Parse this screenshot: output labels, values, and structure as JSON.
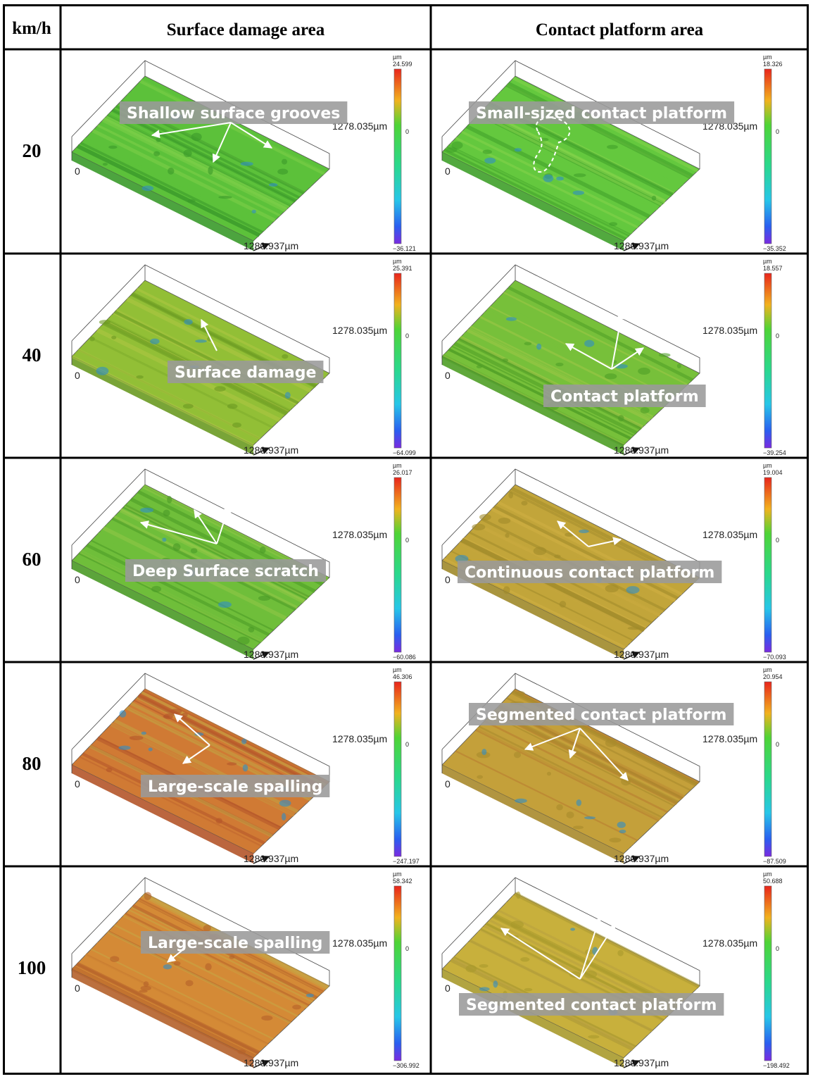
{
  "header": {
    "speed_col": "km/h",
    "col1": "Surface damage  area",
    "col2": "Contact platform  area"
  },
  "axes": {
    "x_max": "1280.937µm",
    "y_max": "1278.035µm",
    "origin": "0",
    "unit": "µm"
  },
  "rows": [
    {
      "speed": "20",
      "left": {
        "label": "Shallow surface grooves",
        "scale_max": "24.599",
        "scale_min": "−36.121",
        "palette": [
          "#3a9a2a",
          "#5cc13a",
          "#7fd04a"
        ]
      },
      "right": {
        "label": "Small-sized contact  platform",
        "scale_max": "18.326",
        "scale_min": "−35.352",
        "palette": [
          "#3fa02a",
          "#64c83e",
          "#86d44c"
        ]
      }
    },
    {
      "speed": "40",
      "left": {
        "label": "Surface damage",
        "scale_max": "25.391",
        "scale_min": "−64.099",
        "palette": [
          "#6a9a22",
          "#92bf36",
          "#b0c844"
        ]
      },
      "right": {
        "label": "Contact  platform",
        "scale_max": "18.557",
        "scale_min": "−39.254",
        "palette": [
          "#4f9e26",
          "#77c03a",
          "#a0c848"
        ]
      }
    },
    {
      "speed": "60",
      "left": {
        "label": "Deep Surface scratch",
        "scale_max": "26.017",
        "scale_min": "−60.086",
        "palette": [
          "#4a9a26",
          "#6fbe3a",
          "#92c848"
        ]
      },
      "right": {
        "label": "Continuous  contact platform",
        "scale_max": "19.004",
        "scale_min": "−70.093",
        "palette": [
          "#a08a2a",
          "#c2a53a",
          "#d2b044"
        ]
      }
    },
    {
      "speed": "80",
      "left": {
        "label": "Large-scale spalling",
        "scale_max": "46.306",
        "scale_min": "−247.197",
        "palette": [
          "#b4552a",
          "#d07a34",
          "#c2a444"
        ]
      },
      "right": {
        "label": "Segmented contact platform",
        "scale_max": "20.954",
        "scale_min": "−87.509",
        "palette": [
          "#a88a2c",
          "#c4a03a",
          "#b87a30"
        ]
      }
    },
    {
      "speed": "100",
      "left": {
        "label": "Large-scale spalling",
        "scale_max": "58.342",
        "scale_min": "−306.992",
        "palette": [
          "#b4602a",
          "#d48a36",
          "#c6a846"
        ]
      },
      "right": {
        "label": "Segmented contact  platform",
        "scale_max": "50.688",
        "scale_min": "−198.492",
        "palette": [
          "#a89a2c",
          "#c8b03c",
          "#b8a040"
        ]
      }
    }
  ]
}
